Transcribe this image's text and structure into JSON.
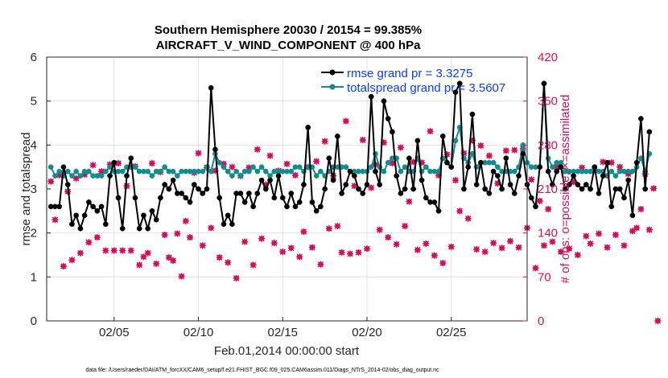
{
  "chart_data": {
    "type": "line",
    "title_line1": "Southern Hemisphere 20030 / 20154 = 99.385%",
    "title_line2": "AIRCRAFT_V_WIND_COMPONENT @ 400 hPa",
    "xlabel": "Feb.01,2014 00:00:00 start",
    "ylabel_left": "rmse and totalspread",
    "ylabel_right": "# of obs: o=possible; ×=assimilated",
    "footnote": "data file: /Users/raeder/DAI/ATM_forcXX/CAM6_setup/f.e21.FHIST_BGC.f09_025.CAM6assim.011/Diags_NTrS_2014-02/obs_diag_output.nc",
    "xlim": [
      1.0,
      29.5
    ],
    "ylim_left": [
      0,
      6
    ],
    "ylim_right": [
      0,
      420
    ],
    "x_ticks": [
      5,
      10,
      15,
      20,
      25
    ],
    "x_tick_labels": [
      "02/05",
      "02/10",
      "02/15",
      "02/20",
      "02/25"
    ],
    "y_left_ticks": [
      0,
      1,
      2,
      3,
      4,
      5,
      6
    ],
    "y_left_tick_labels": [
      "0",
      "1",
      "2",
      "3",
      "4",
      "5",
      "6"
    ],
    "y_right_ticks": [
      0,
      70,
      140,
      210,
      280,
      350,
      420
    ],
    "y_right_tick_labels": [
      "0",
      "70",
      "140",
      "210",
      "280",
      "350",
      "420"
    ],
    "colors": {
      "rmse": "#000000",
      "spread": "#128c8c",
      "obs": "#d0105a",
      "legend_text": "#0a3df0",
      "grid": "#dddddd"
    },
    "legend": {
      "placement": "top-right",
      "entries": [
        "rmse grand pr = 3.3275",
        "totalspread grand pr = 3.5607"
      ]
    },
    "series": [
      {
        "name": "rmse",
        "x_start": 1.25,
        "x_step": 0.25,
        "values": [
          2.6,
          2.6,
          2.6,
          3.5,
          3.1,
          2.2,
          2.4,
          2.1,
          2.4,
          2.7,
          2.6,
          2.5,
          2.6,
          2.2,
          3.3,
          3.6,
          2.8,
          2.1,
          3.3,
          3.7,
          2.8,
          2.1,
          2.4,
          2.1,
          2.5,
          2.3,
          2.8,
          3.1,
          3.0,
          3.2,
          2.9,
          2.9,
          2.8,
          2.7,
          3.1,
          3.0,
          2.9,
          3.0,
          5.3,
          3.9,
          2.8,
          2.2,
          2.4,
          2.2,
          2.9,
          2.9,
          2.7,
          2.9,
          2.6,
          2.9,
          3.2,
          3.0,
          3.2,
          2.8,
          3.3,
          2.8,
          2.6,
          2.9,
          2.6,
          2.7,
          3.1,
          4.4,
          2.7,
          2.5,
          2.6,
          3.0,
          3.7,
          3.2,
          4.2,
          2.9,
          3.1,
          3.4,
          3.3,
          3.0,
          2.9,
          3.1,
          5.1,
          3.4,
          3.1,
          5.0,
          4.6,
          4.3,
          3.3,
          2.9,
          3.0,
          3.7,
          3.0,
          4.1,
          3.2,
          2.8,
          2.7,
          2.7,
          2.5,
          4.2,
          3.6,
          3.5,
          5.2,
          5.4,
          3.0,
          3.5,
          4.7,
          3.1,
          3.6,
          3.0,
          2.9,
          3.4,
          3.3,
          3.0,
          3.7,
          3.1,
          2.9,
          3.3,
          3.8,
          3.1,
          2.8,
          2.6,
          3.5,
          5.4,
          3.4,
          3.1,
          3.4,
          3.5,
          3.0,
          3.1,
          3.3,
          3.1,
          3.0,
          3.1,
          3.0,
          3.5,
          2.9,
          3.3,
          3.6,
          2.6,
          3.0,
          3.0,
          2.8,
          3.2,
          2.4,
          3.6,
          4.6,
          3.0,
          4.3
        ]
      },
      {
        "name": "totalspread",
        "x_start": 1.25,
        "x_step": 0.25,
        "values": [
          3.5,
          3.3,
          3.4,
          3.3,
          3.4,
          3.3,
          3.4,
          3.3,
          3.4,
          3.4,
          3.3,
          3.3,
          3.3,
          3.4,
          3.5,
          3.4,
          3.4,
          3.4,
          3.5,
          3.5,
          3.5,
          3.4,
          3.4,
          3.4,
          3.3,
          3.4,
          3.4,
          3.5,
          3.4,
          3.4,
          3.3,
          3.4,
          3.4,
          3.4,
          3.4,
          3.4,
          3.4,
          3.5,
          3.4,
          3.8,
          3.6,
          3.5,
          3.4,
          3.3,
          3.4,
          3.3,
          3.4,
          3.4,
          3.5,
          3.4,
          3.5,
          3.4,
          3.3,
          3.4,
          3.4,
          3.4,
          3.4,
          3.4,
          3.5,
          3.5,
          3.4,
          3.5,
          3.5,
          3.3,
          3.4,
          3.3,
          3.4,
          3.5,
          3.5,
          3.5,
          3.5,
          3.4,
          3.4,
          3.4,
          3.4,
          3.4,
          3.5,
          3.8,
          3.5,
          3.4,
          3.6,
          3.7,
          3.7,
          3.4,
          3.5,
          3.4,
          3.4,
          3.7,
          3.4,
          3.5,
          3.4,
          3.4,
          3.4,
          3.7,
          3.6,
          3.5,
          4.1,
          4.4,
          3.7,
          3.6,
          3.8,
          3.5,
          3.6,
          3.6,
          3.6,
          3.6,
          3.5,
          3.4,
          3.4,
          3.4,
          3.4,
          3.5,
          4.0,
          3.6,
          3.5,
          3.5,
          3.5,
          5.4,
          3.7,
          3.5,
          3.6,
          3.6,
          3.4,
          3.4,
          3.4,
          3.4,
          3.4,
          3.4,
          3.4,
          3.5,
          3.4,
          3.4,
          3.3,
          3.4,
          3.3,
          3.4,
          3.4,
          3.4,
          3.4,
          3.5,
          3.7,
          3.4,
          3.8
        ]
      },
      {
        "name": "obs_possible",
        "axis": "right",
        "marker": "o",
        "x_start": 1.25,
        "x_step": 0.25,
        "values": [
          222,
          161,
          232,
          87,
          206,
          97,
          227,
          108,
          233,
          125,
          248,
          133,
          238,
          112,
          249,
          112,
          251,
          112,
          215,
          112,
          246,
          89,
          102,
          108,
          251,
          91,
          237,
          137,
          101,
          96,
          139,
          71,
          159,
          133,
          236,
          267,
          120,
          244,
          148,
          239,
          101,
          250,
          93,
          245,
          68,
          231,
          126,
          244,
          89,
          273,
          131,
          217,
          263,
          124,
          239,
          110,
          250,
          116,
          232,
          102,
          142,
          245,
          117,
          254,
          90,
          286,
          147,
          231,
          151,
          109,
          318,
          107,
          215,
          109,
          288,
          115,
          212,
          249,
          145,
          284,
          133,
          251,
          122,
          276,
          151,
          190,
          253,
          113,
          252,
          123,
          302,
          104,
          232,
          92,
          265,
          118,
          224,
          175,
          267,
          163,
          287,
          114,
          279,
          110,
          263,
          124,
          219,
          116,
          271,
          127,
          272,
          117,
          274,
          148,
          225,
          84,
          191,
          120,
          178,
          126,
          245,
          110,
          239,
          115,
          221,
          105,
          244,
          135,
          123,
          240,
          139,
          253,
          117,
          252,
          137,
          245,
          120,
          234,
          143,
          148,
          178,
          234,
          145,
          211,
          0
        ]
      },
      {
        "name": "obs_assimilated",
        "axis": "right",
        "marker": "x",
        "x_start": 1.25,
        "x_step": 0.25,
        "values": [
          222,
          161,
          232,
          87,
          206,
          97,
          227,
          108,
          233,
          125,
          248,
          133,
          238,
          112,
          249,
          112,
          251,
          112,
          215,
          112,
          246,
          89,
          102,
          108,
          251,
          91,
          237,
          137,
          101,
          96,
          139,
          71,
          159,
          133,
          236,
          267,
          120,
          244,
          148,
          239,
          101,
          250,
          93,
          245,
          68,
          231,
          126,
          244,
          89,
          273,
          131,
          217,
          263,
          124,
          239,
          110,
          250,
          116,
          232,
          102,
          142,
          245,
          117,
          254,
          90,
          286,
          147,
          231,
          151,
          109,
          318,
          107,
          215,
          109,
          288,
          115,
          212,
          249,
          145,
          284,
          133,
          251,
          122,
          276,
          151,
          190,
          253,
          113,
          252,
          123,
          302,
          104,
          232,
          92,
          265,
          118,
          224,
          175,
          267,
          163,
          287,
          114,
          279,
          110,
          263,
          124,
          219,
          116,
          271,
          127,
          272,
          117,
          274,
          148,
          225,
          84,
          191,
          120,
          178,
          126,
          245,
          110,
          239,
          115,
          221,
          105,
          244,
          135,
          123,
          240,
          139,
          253,
          117,
          252,
          137,
          245,
          120,
          234,
          143,
          148,
          178,
          234,
          145,
          211,
          0
        ]
      }
    ]
  }
}
